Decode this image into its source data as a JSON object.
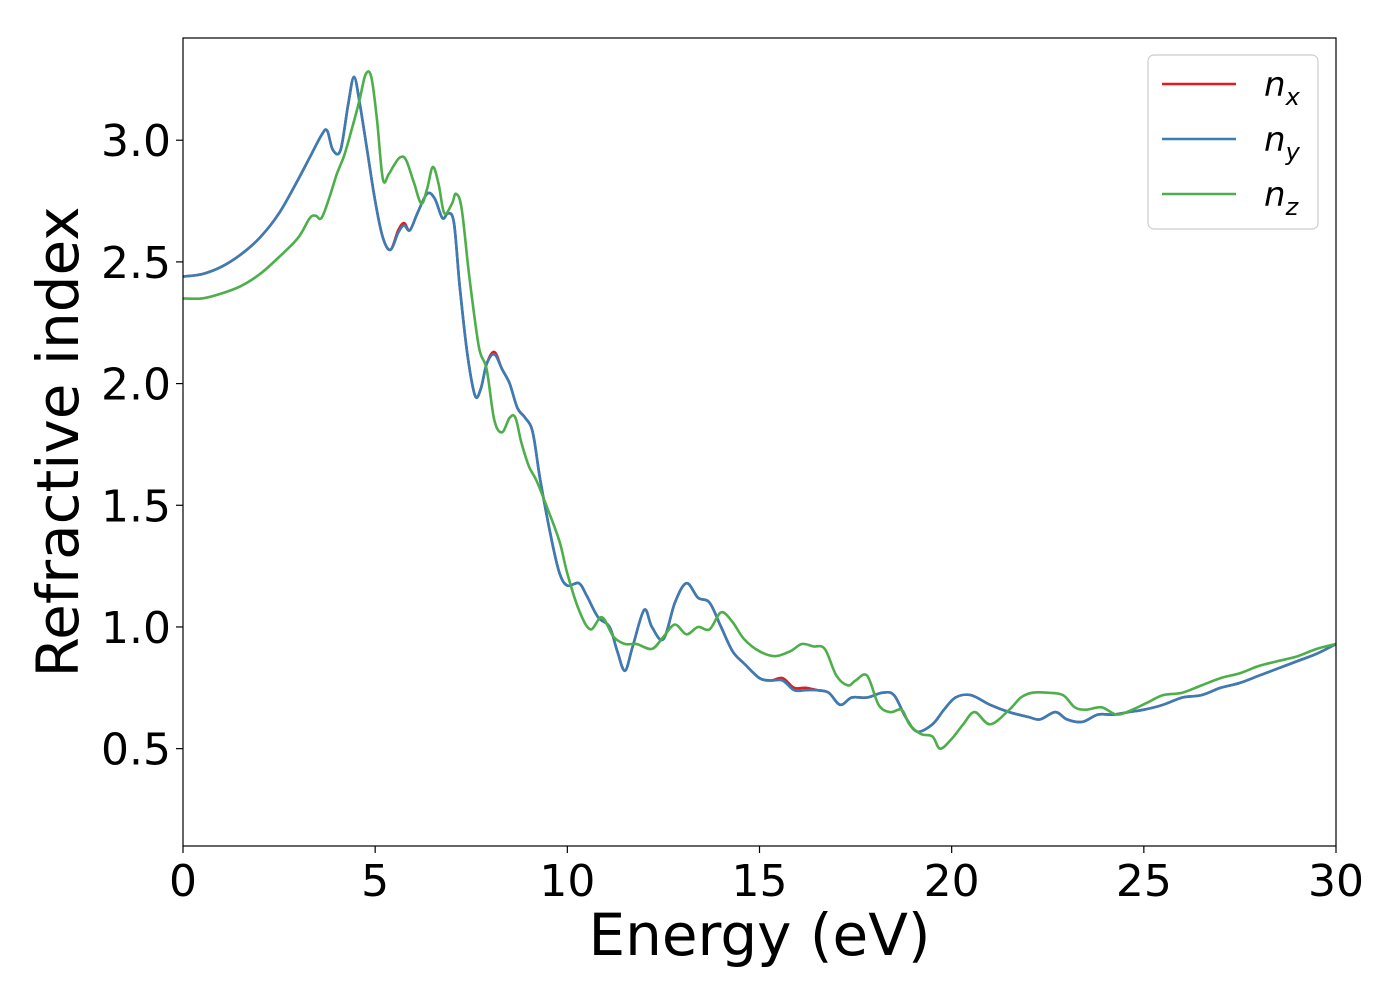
{
  "chart_data": {
    "type": "line",
    "title": "",
    "xlabel": "Energy (eV)",
    "ylabel": "Refractive index",
    "xlim": [
      0,
      30
    ],
    "ylim": [
      0.1,
      3.42
    ],
    "xticks": [
      0,
      5,
      10,
      15,
      20,
      25,
      30
    ],
    "yticks": [
      0.5,
      1.0,
      1.5,
      2.0,
      2.5,
      3.0
    ],
    "xtick_labels": [
      "0",
      "5",
      "10",
      "15",
      "20",
      "25",
      "30"
    ],
    "ytick_labels": [
      "0.5",
      "1.0",
      "1.5",
      "2.0",
      "2.5",
      "3.0"
    ],
    "grid": false,
    "legend_position": "top-right",
    "series": [
      {
        "name": "nx",
        "sub": "x",
        "color": "#e41a1c",
        "x": [
          0,
          0.5,
          1,
          1.5,
          2,
          2.5,
          3,
          3.3,
          3.6,
          3.75,
          3.9,
          4.1,
          4.3,
          4.45,
          4.6,
          4.8,
          5.0,
          5.2,
          5.4,
          5.6,
          5.75,
          5.9,
          6.1,
          6.35,
          6.55,
          6.75,
          6.9,
          7.05,
          7.2,
          7.4,
          7.6,
          7.75,
          7.9,
          8.1,
          8.3,
          8.5,
          8.7,
          8.9,
          9.1,
          9.3,
          9.6,
          9.8,
          10.0,
          10.3,
          10.5,
          10.8,
          11.1,
          11.3,
          11.5,
          11.7,
          12.0,
          12.2,
          12.5,
          12.8,
          13.1,
          13.4,
          13.7,
          14.0,
          14.3,
          14.6,
          15.0,
          15.3,
          15.6,
          15.9,
          16.2,
          16.5,
          16.8,
          17.1,
          17.4,
          17.8,
          18.2,
          18.5,
          18.8,
          19.1,
          19.5,
          19.8,
          20.1,
          20.5,
          21.0,
          21.5,
          22.0,
          22.3,
          22.7,
          23.0,
          23.4,
          23.8,
          24.2,
          24.6,
          25.0,
          25.5,
          26.0,
          26.5,
          27.0,
          27.5,
          28.0,
          28.5,
          29.0,
          29.5,
          30.0
        ],
        "y": [
          2.44,
          2.45,
          2.48,
          2.53,
          2.6,
          2.7,
          2.84,
          2.93,
          3.02,
          3.04,
          2.96,
          2.96,
          3.15,
          3.26,
          3.15,
          2.95,
          2.75,
          2.6,
          2.55,
          2.63,
          2.66,
          2.63,
          2.7,
          2.78,
          2.76,
          2.68,
          2.7,
          2.66,
          2.4,
          2.12,
          1.95,
          1.98,
          2.08,
          2.13,
          2.06,
          2.0,
          1.9,
          1.86,
          1.8,
          1.6,
          1.35,
          1.22,
          1.17,
          1.18,
          1.13,
          1.04,
          1.0,
          0.9,
          0.82,
          0.92,
          1.07,
          1.0,
          0.95,
          1.1,
          1.18,
          1.12,
          1.1,
          1.0,
          0.9,
          0.85,
          0.79,
          0.78,
          0.79,
          0.75,
          0.75,
          0.74,
          0.73,
          0.68,
          0.71,
          0.71,
          0.73,
          0.72,
          0.63,
          0.57,
          0.6,
          0.66,
          0.71,
          0.72,
          0.68,
          0.65,
          0.63,
          0.62,
          0.65,
          0.62,
          0.61,
          0.64,
          0.64,
          0.65,
          0.66,
          0.68,
          0.71,
          0.72,
          0.75,
          0.77,
          0.8,
          0.83,
          0.86,
          0.89,
          0.93
        ]
      },
      {
        "name": "ny",
        "sub": "y",
        "color": "#377eb8",
        "x": [
          0,
          0.5,
          1,
          1.5,
          2,
          2.5,
          3,
          3.3,
          3.6,
          3.75,
          3.9,
          4.1,
          4.3,
          4.45,
          4.6,
          4.8,
          5.0,
          5.2,
          5.4,
          5.6,
          5.75,
          5.9,
          6.1,
          6.35,
          6.55,
          6.75,
          6.9,
          7.05,
          7.2,
          7.4,
          7.6,
          7.75,
          7.9,
          8.1,
          8.3,
          8.5,
          8.7,
          8.9,
          9.1,
          9.3,
          9.6,
          9.8,
          10.0,
          10.3,
          10.5,
          10.8,
          11.1,
          11.3,
          11.5,
          11.7,
          12.0,
          12.2,
          12.5,
          12.8,
          13.1,
          13.4,
          13.7,
          14.0,
          14.3,
          14.6,
          15.0,
          15.3,
          15.6,
          15.9,
          16.2,
          16.5,
          16.8,
          17.1,
          17.4,
          17.8,
          18.2,
          18.5,
          18.8,
          19.1,
          19.5,
          19.8,
          20.1,
          20.5,
          21.0,
          21.5,
          22.0,
          22.3,
          22.7,
          23.0,
          23.4,
          23.8,
          24.2,
          24.6,
          25.0,
          25.5,
          26.0,
          26.5,
          27.0,
          27.5,
          28.0,
          28.5,
          29.0,
          29.5,
          30.0
        ],
        "y": [
          2.44,
          2.45,
          2.48,
          2.53,
          2.6,
          2.7,
          2.84,
          2.93,
          3.02,
          3.04,
          2.96,
          2.96,
          3.15,
          3.26,
          3.15,
          2.95,
          2.75,
          2.6,
          2.55,
          2.62,
          2.65,
          2.63,
          2.7,
          2.78,
          2.76,
          2.68,
          2.7,
          2.66,
          2.4,
          2.12,
          1.95,
          1.98,
          2.08,
          2.12,
          2.06,
          2.0,
          1.9,
          1.86,
          1.8,
          1.6,
          1.35,
          1.22,
          1.17,
          1.18,
          1.13,
          1.04,
          1.0,
          0.9,
          0.82,
          0.92,
          1.07,
          1.0,
          0.95,
          1.1,
          1.18,
          1.12,
          1.1,
          1.0,
          0.9,
          0.85,
          0.79,
          0.78,
          0.78,
          0.74,
          0.74,
          0.74,
          0.73,
          0.68,
          0.71,
          0.71,
          0.73,
          0.72,
          0.63,
          0.57,
          0.6,
          0.66,
          0.71,
          0.72,
          0.68,
          0.65,
          0.63,
          0.62,
          0.65,
          0.62,
          0.61,
          0.64,
          0.64,
          0.65,
          0.66,
          0.68,
          0.71,
          0.72,
          0.75,
          0.77,
          0.8,
          0.83,
          0.86,
          0.89,
          0.93
        ]
      },
      {
        "name": "nz",
        "sub": "z",
        "color": "#4daf4a",
        "x": [
          0,
          0.5,
          1,
          1.5,
          2,
          2.5,
          3,
          3.3,
          3.45,
          3.6,
          3.8,
          4.0,
          4.2,
          4.4,
          4.6,
          4.75,
          4.9,
          5.05,
          5.2,
          5.35,
          5.5,
          5.65,
          5.8,
          6.0,
          6.2,
          6.35,
          6.5,
          6.65,
          6.8,
          7.0,
          7.1,
          7.25,
          7.45,
          7.7,
          7.9,
          8.1,
          8.3,
          8.5,
          8.65,
          8.8,
          9.0,
          9.2,
          9.5,
          9.8,
          10.0,
          10.3,
          10.6,
          10.9,
          11.2,
          11.5,
          11.8,
          12.2,
          12.5,
          12.8,
          13.1,
          13.4,
          13.7,
          14.0,
          14.3,
          14.6,
          15.0,
          15.4,
          15.8,
          16.1,
          16.4,
          16.7,
          17.0,
          17.3,
          17.5,
          17.8,
          18.1,
          18.4,
          18.7,
          18.9,
          19.2,
          19.5,
          19.7,
          20.0,
          20.3,
          20.6,
          21.0,
          21.5,
          21.8,
          22.1,
          22.5,
          22.9,
          23.2,
          23.5,
          23.9,
          24.3,
          24.7,
          25.1,
          25.5,
          26.0,
          26.5,
          27.0,
          27.5,
          28.0,
          28.5,
          29.0,
          29.5,
          30.0
        ],
        "y": [
          2.35,
          2.35,
          2.37,
          2.4,
          2.45,
          2.52,
          2.6,
          2.68,
          2.69,
          2.68,
          2.76,
          2.86,
          2.94,
          3.05,
          3.17,
          3.27,
          3.26,
          3.08,
          2.84,
          2.86,
          2.9,
          2.93,
          2.92,
          2.83,
          2.74,
          2.8,
          2.89,
          2.82,
          2.7,
          2.74,
          2.78,
          2.72,
          2.44,
          2.15,
          2.06,
          1.85,
          1.8,
          1.86,
          1.86,
          1.76,
          1.66,
          1.6,
          1.48,
          1.35,
          1.22,
          1.07,
          0.99,
          1.04,
          0.96,
          0.93,
          0.93,
          0.91,
          0.96,
          1.01,
          0.97,
          1.0,
          0.99,
          1.06,
          1.02,
          0.95,
          0.9,
          0.88,
          0.9,
          0.93,
          0.92,
          0.91,
          0.8,
          0.76,
          0.78,
          0.8,
          0.68,
          0.65,
          0.66,
          0.6,
          0.56,
          0.55,
          0.5,
          0.54,
          0.6,
          0.65,
          0.6,
          0.66,
          0.71,
          0.73,
          0.73,
          0.72,
          0.67,
          0.66,
          0.67,
          0.64,
          0.66,
          0.69,
          0.72,
          0.73,
          0.76,
          0.79,
          0.81,
          0.84,
          0.86,
          0.88,
          0.91,
          0.93
        ]
      }
    ]
  }
}
